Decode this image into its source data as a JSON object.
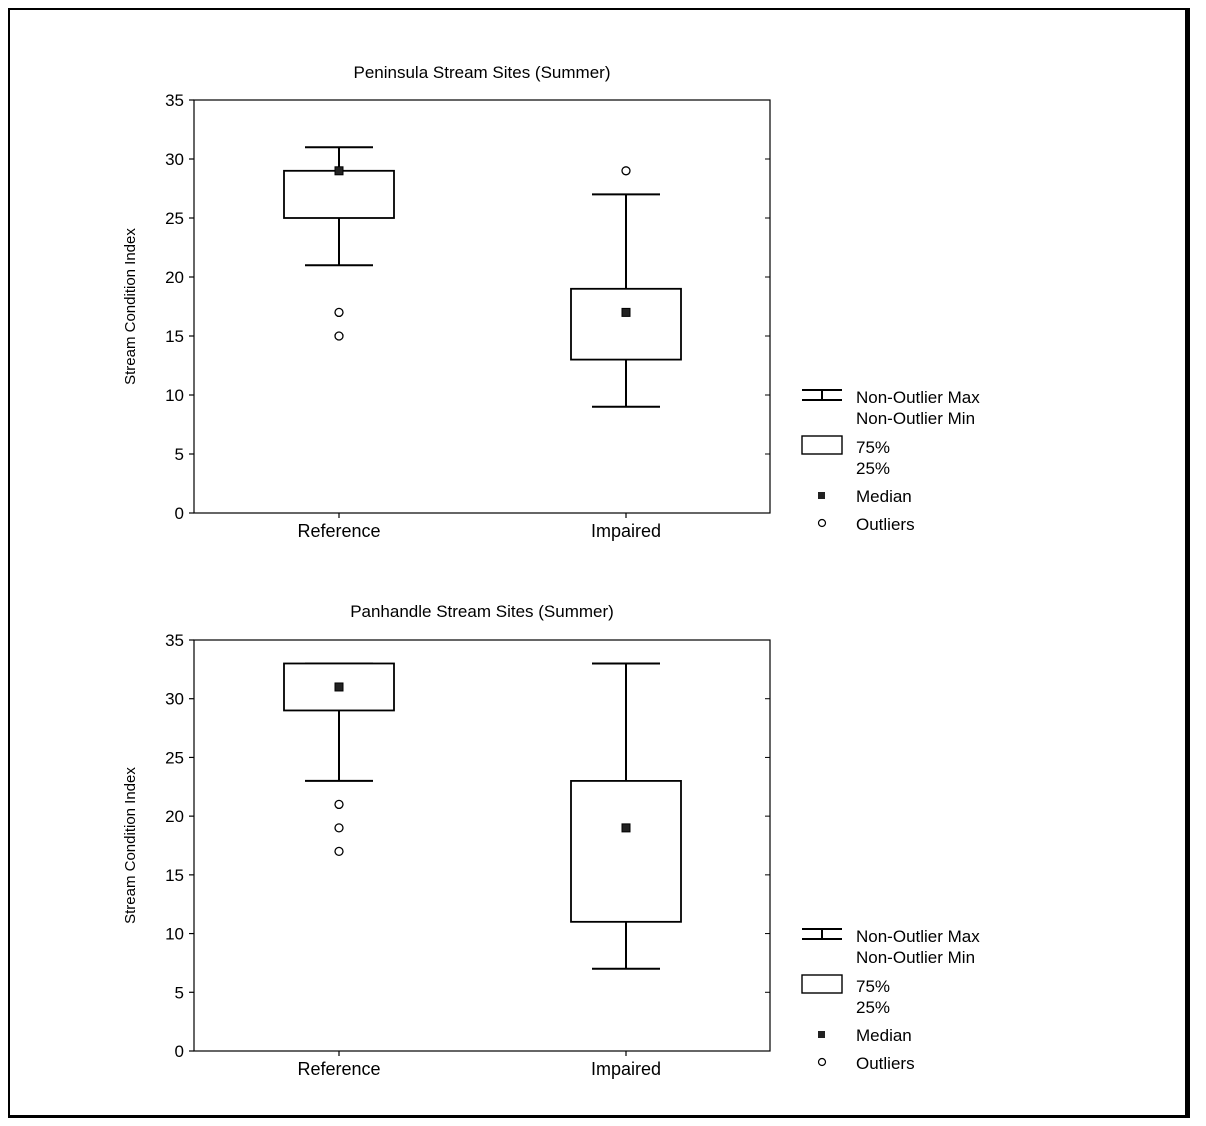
{
  "chart_data": [
    {
      "type": "box",
      "title": "Peninsula Stream Sites (Summer)",
      "ylabel": "Stream Condition Index",
      "ylim": [
        0,
        35
      ],
      "yticks": [
        0,
        5,
        10,
        15,
        20,
        25,
        30,
        35
      ],
      "categories": [
        "Reference",
        "Impaired"
      ],
      "boxes": [
        {
          "category": "Reference",
          "whisker_min": 21,
          "q1": 25,
          "median": 29,
          "q3": 29,
          "whisker_max": 31,
          "outliers": [
            17,
            15
          ]
        },
        {
          "category": "Impaired",
          "whisker_min": 9,
          "q1": 13,
          "median": 17,
          "q3": 19,
          "whisker_max": 27,
          "outliers": [
            29
          ]
        }
      ],
      "legend": {
        "whisker": [
          "Non-Outlier Max",
          "Non-Outlier Min"
        ],
        "box": [
          "75%",
          "25%"
        ],
        "median": "Median",
        "outliers": "Outliers"
      }
    },
    {
      "type": "box",
      "title": "Panhandle Stream Sites (Summer)",
      "ylabel": "Stream Condition Index",
      "ylim": [
        0,
        35
      ],
      "yticks": [
        0,
        5,
        10,
        15,
        20,
        25,
        30,
        35
      ],
      "categories": [
        "Reference",
        "Impaired"
      ],
      "boxes": [
        {
          "category": "Reference",
          "whisker_min": 23,
          "q1": 29,
          "median": 31,
          "q3": 33,
          "whisker_max": 33,
          "outliers": [
            21,
            19,
            17
          ]
        },
        {
          "category": "Impaired",
          "whisker_min": 7,
          "q1": 11,
          "median": 19,
          "q3": 23,
          "whisker_max": 33,
          "outliers": []
        }
      ],
      "legend": {
        "whisker": [
          "Non-Outlier Max",
          "Non-Outlier Min"
        ],
        "box": [
          "75%",
          "25%"
        ],
        "median": "Median",
        "outliers": "Outliers"
      }
    }
  ]
}
